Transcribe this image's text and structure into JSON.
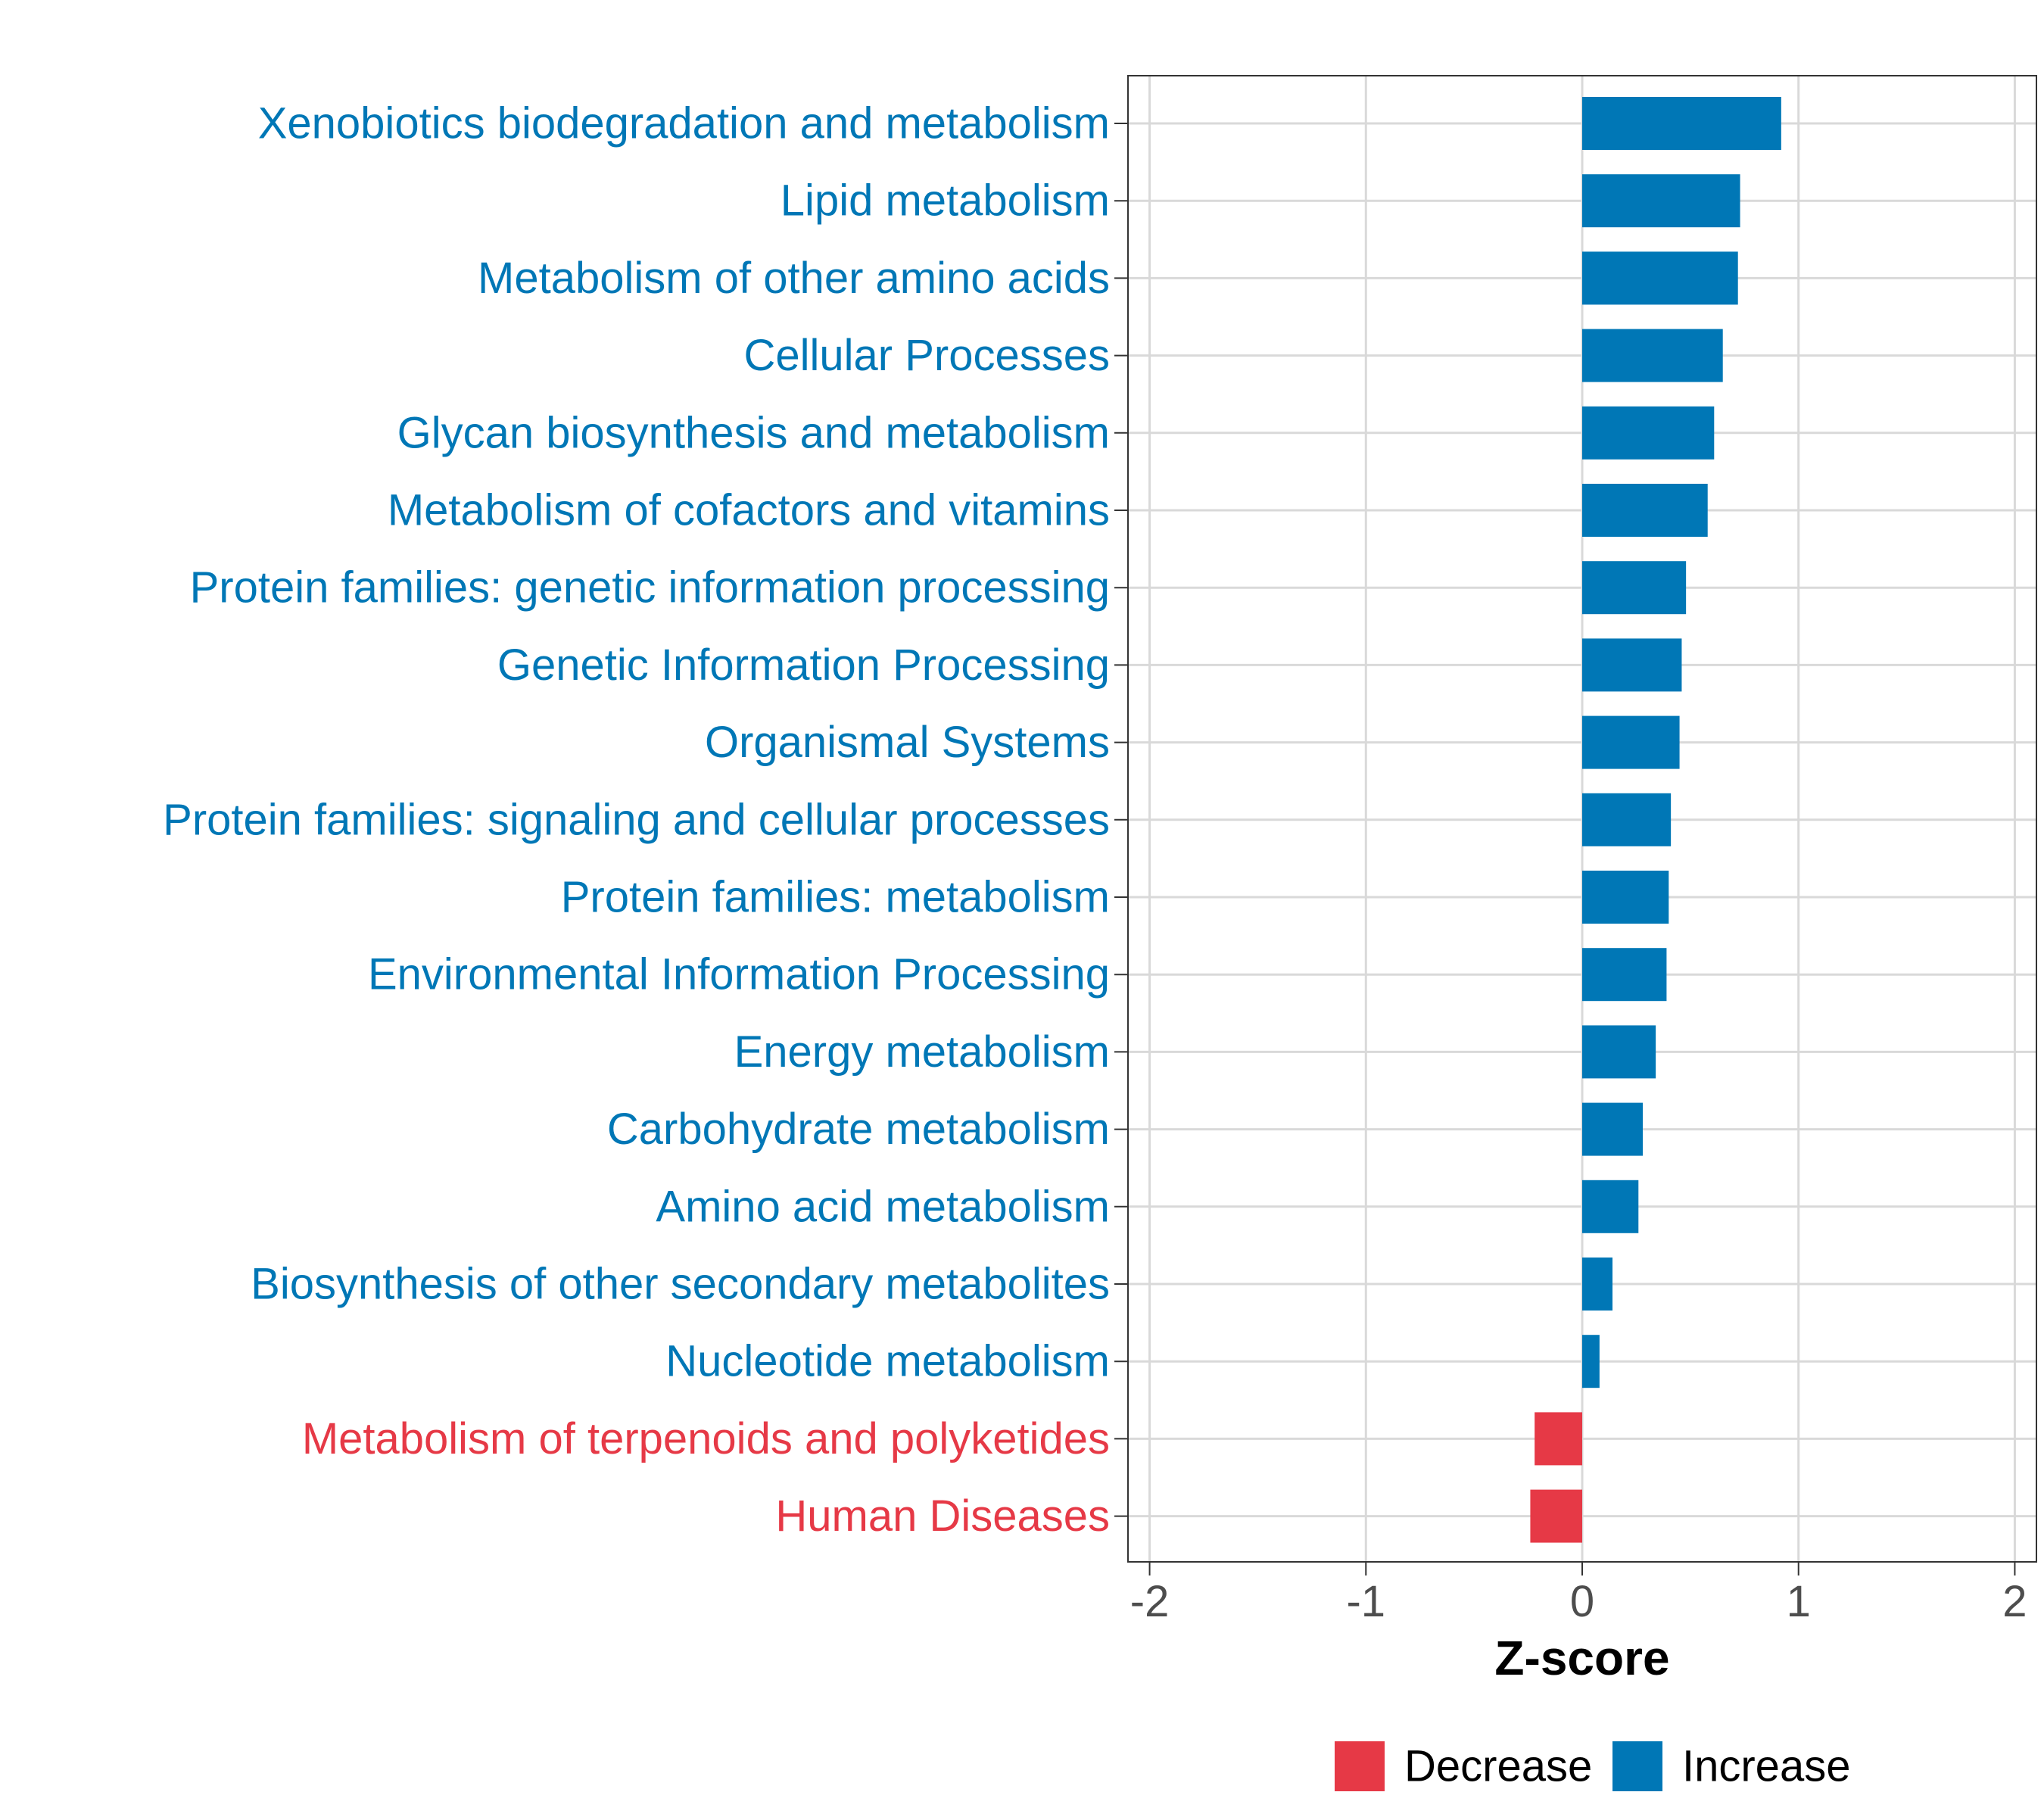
{
  "chart_data": {
    "type": "bar",
    "orientation": "horizontal",
    "categories": [
      "Xenobiotics biodegradation and metabolism",
      "Lipid metabolism",
      "Metabolism of other amino acids",
      "Cellular Processes",
      "Glycan biosynthesis and metabolism",
      "Metabolism of cofactors and vitamins",
      "Protein families: genetic information processing",
      "Genetic Information Processing",
      "Organismal Systems",
      "Protein families: signaling and cellular processes",
      "Protein families: metabolism",
      "Environmental Information Processing",
      "Energy metabolism",
      "Carbohydrate metabolism",
      "Amino acid metabolism",
      "Biosynthesis of other secondary metabolites",
      "Nucleotide metabolism",
      "Metabolism of terpenoids and polyketides",
      "Human Diseases"
    ],
    "values": [
      0.92,
      0.73,
      0.72,
      0.65,
      0.61,
      0.58,
      0.48,
      0.46,
      0.45,
      0.41,
      0.4,
      0.39,
      0.34,
      0.28,
      0.26,
      0.14,
      0.08,
      -0.22,
      -0.24
    ],
    "groups": [
      "Increase",
      "Increase",
      "Increase",
      "Increase",
      "Increase",
      "Increase",
      "Increase",
      "Increase",
      "Increase",
      "Increase",
      "Increase",
      "Increase",
      "Increase",
      "Increase",
      "Increase",
      "Increase",
      "Increase",
      "Decrease",
      "Decrease"
    ],
    "xlabel": "Z-score",
    "ylabel": "",
    "xlim": [
      -2.1,
      2.1
    ],
    "xticks": [
      -2,
      -1,
      0,
      1,
      2
    ],
    "xtick_labels": [
      "-2",
      "-1",
      "0",
      "1",
      "2"
    ],
    "grid": true,
    "legend": {
      "position": "bottom",
      "entries": [
        {
          "label": "Decrease",
          "color": "#E63946"
        },
        {
          "label": "Increase",
          "color": "#0077B6"
        }
      ]
    },
    "colors": {
      "Increase": "#0077B6",
      "Decrease": "#E63946",
      "grid": "#D9D9D9",
      "axis": "#333333",
      "tick_text": "#4D4D4D"
    }
  }
}
